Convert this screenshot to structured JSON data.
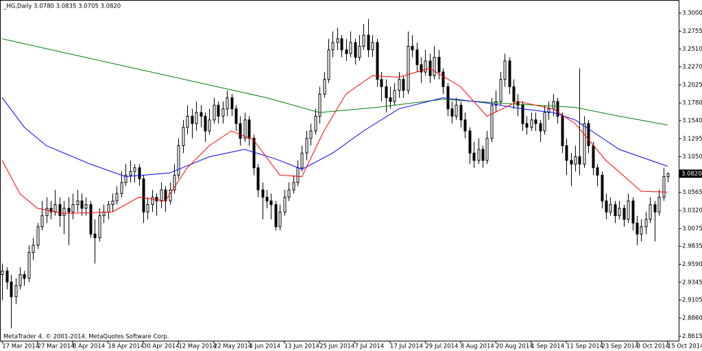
{
  "chart_data": {
    "type": "candlestick",
    "title": "_HG,Daily 3.0780 3.0835 3.0705 3.0820",
    "footer": "MetaTrader 4. © 2001-2014. MetaQuotes Software Corp.",
    "up_color": "#ffffff",
    "down_color": "#000000",
    "candles": [
      [
        2.945,
        2.96,
        2.91,
        2.95
      ],
      [
        2.95,
        2.955,
        2.925,
        2.935
      ],
      [
        2.935,
        2.945,
        2.872,
        2.915
      ],
      [
        2.915,
        2.94,
        2.905,
        2.93
      ],
      [
        2.93,
        2.955,
        2.925,
        2.945
      ],
      [
        2.945,
        2.95,
        2.93,
        2.94
      ],
      [
        2.94,
        2.985,
        2.935,
        2.975
      ],
      [
        2.975,
        2.995,
        2.965,
        2.985
      ],
      [
        2.985,
        3.015,
        2.98,
        3.01
      ],
      [
        3.01,
        3.045,
        3.005,
        3.025
      ],
      [
        3.025,
        3.05,
        3.015,
        3.035
      ],
      [
        3.035,
        3.045,
        3.02,
        3.03
      ],
      [
        3.03,
        3.06,
        3.025,
        3.04
      ],
      [
        3.04,
        3.05,
        3.01,
        3.025
      ],
      [
        3.025,
        3.045,
        3.0,
        3.035
      ],
      [
        3.035,
        3.05,
        2.985,
        3.03
      ],
      [
        3.03,
        3.055,
        3.02,
        3.04
      ],
      [
        3.04,
        3.06,
        3.03,
        3.045
      ],
      [
        3.045,
        3.055,
        3.025,
        3.035
      ],
      [
        3.035,
        3.05,
        3.025,
        3.04
      ],
      [
        3.04,
        3.045,
        2.995,
        3.0
      ],
      [
        3.0,
        3.02,
        2.96,
        2.995
      ],
      [
        2.995,
        3.035,
        2.99,
        3.025
      ],
      [
        3.025,
        3.04,
        3.015,
        3.03
      ],
      [
        3.03,
        3.045,
        3.02,
        3.04
      ],
      [
        3.04,
        3.055,
        3.03,
        3.045
      ],
      [
        3.045,
        3.065,
        3.04,
        3.055
      ],
      [
        3.055,
        3.085,
        3.05,
        3.07
      ],
      [
        3.07,
        3.095,
        3.065,
        3.08
      ],
      [
        3.08,
        3.1,
        3.07,
        3.085
      ],
      [
        3.085,
        3.095,
        3.07,
        3.09
      ],
      [
        3.09,
        3.095,
        3.065,
        3.075
      ],
      [
        3.075,
        3.08,
        3.015,
        3.03
      ],
      [
        3.03,
        3.05,
        3.02,
        3.04
      ],
      [
        3.04,
        3.06,
        3.03,
        3.05
      ],
      [
        3.05,
        3.055,
        3.025,
        3.045
      ],
      [
        3.045,
        3.07,
        3.035,
        3.06
      ],
      [
        3.06,
        3.065,
        3.03,
        3.045
      ],
      [
        3.045,
        3.07,
        3.04,
        3.06
      ],
      [
        3.06,
        3.095,
        3.055,
        3.08
      ],
      [
        3.08,
        3.13,
        3.075,
        3.12
      ],
      [
        3.12,
        3.155,
        3.11,
        3.145
      ],
      [
        3.145,
        3.175,
        3.135,
        3.16
      ],
      [
        3.16,
        3.17,
        3.13,
        3.15
      ],
      [
        3.15,
        3.18,
        3.14,
        3.165
      ],
      [
        3.165,
        3.175,
        3.145,
        3.16
      ],
      [
        3.16,
        3.165,
        3.125,
        3.14
      ],
      [
        3.14,
        3.17,
        3.135,
        3.155
      ],
      [
        3.155,
        3.185,
        3.15,
        3.175
      ],
      [
        3.175,
        3.18,
        3.15,
        3.16
      ],
      [
        3.16,
        3.18,
        3.15,
        3.17
      ],
      [
        3.17,
        3.195,
        3.16,
        3.185
      ],
      [
        3.185,
        3.19,
        3.16,
        3.17
      ],
      [
        3.17,
        3.175,
        3.14,
        3.15
      ],
      [
        3.15,
        3.16,
        3.12,
        3.13
      ],
      [
        3.13,
        3.165,
        3.125,
        3.155
      ],
      [
        3.155,
        3.16,
        3.12,
        3.13
      ],
      [
        3.13,
        3.135,
        3.08,
        3.09
      ],
      [
        3.09,
        3.095,
        3.05,
        3.06
      ],
      [
        3.06,
        3.07,
        3.02,
        3.05
      ],
      [
        3.05,
        3.06,
        3.035,
        3.045
      ],
      [
        3.045,
        3.055,
        3.02,
        3.04
      ],
      [
        3.04,
        3.045,
        3.005,
        3.01
      ],
      [
        3.01,
        3.04,
        3.005,
        3.03
      ],
      [
        3.03,
        3.06,
        3.025,
        3.05
      ],
      [
        3.05,
        3.07,
        3.045,
        3.06
      ],
      [
        3.06,
        3.08,
        3.055,
        3.07
      ],
      [
        3.07,
        3.1,
        3.065,
        3.09
      ],
      [
        3.09,
        3.12,
        3.085,
        3.11
      ],
      [
        3.11,
        3.14,
        3.1,
        3.13
      ],
      [
        3.13,
        3.15,
        3.12,
        3.14
      ],
      [
        3.14,
        3.17,
        3.135,
        3.16
      ],
      [
        3.16,
        3.2,
        3.15,
        3.19
      ],
      [
        3.19,
        3.22,
        3.185,
        3.21
      ],
      [
        3.21,
        3.265,
        3.205,
        3.25
      ],
      [
        3.25,
        3.275,
        3.24,
        3.26
      ],
      [
        3.26,
        3.28,
        3.25,
        3.265
      ],
      [
        3.265,
        3.27,
        3.24,
        3.25
      ],
      [
        3.25,
        3.265,
        3.235,
        3.245
      ],
      [
        3.245,
        3.275,
        3.24,
        3.26
      ],
      [
        3.26,
        3.265,
        3.23,
        3.24
      ],
      [
        3.24,
        3.27,
        3.235,
        3.255
      ],
      [
        3.255,
        3.285,
        3.25,
        3.27
      ],
      [
        3.27,
        3.292,
        3.24,
        3.25
      ],
      [
        3.25,
        3.27,
        3.24,
        3.26
      ],
      [
        3.26,
        3.265,
        3.2,
        3.21
      ],
      [
        3.21,
        3.22,
        3.18,
        3.2
      ],
      [
        3.2,
        3.21,
        3.165,
        3.185
      ],
      [
        3.185,
        3.2,
        3.17,
        3.18
      ],
      [
        3.18,
        3.205,
        3.175,
        3.195
      ],
      [
        3.195,
        3.22,
        3.185,
        3.21
      ],
      [
        3.21,
        3.215,
        3.185,
        3.195
      ],
      [
        3.195,
        3.275,
        3.19,
        3.255
      ],
      [
        3.255,
        3.27,
        3.24,
        3.25
      ],
      [
        3.25,
        3.26,
        3.22,
        3.23
      ],
      [
        3.23,
        3.24,
        3.205,
        3.22
      ],
      [
        3.22,
        3.25,
        3.215,
        3.235
      ],
      [
        3.235,
        3.245,
        3.205,
        3.215
      ],
      [
        3.215,
        3.255,
        3.21,
        3.24
      ],
      [
        3.24,
        3.25,
        3.21,
        3.22
      ],
      [
        3.22,
        3.225,
        3.19,
        3.2
      ],
      [
        3.2,
        3.205,
        3.16,
        3.17
      ],
      [
        3.17,
        3.18,
        3.15,
        3.16
      ],
      [
        3.16,
        3.185,
        3.155,
        3.175
      ],
      [
        3.175,
        3.18,
        3.145,
        3.155
      ],
      [
        3.155,
        3.165,
        3.13,
        3.14
      ],
      [
        3.14,
        3.145,
        3.095,
        3.11
      ],
      [
        3.11,
        3.125,
        3.09,
        3.1
      ],
      [
        3.1,
        3.13,
        3.095,
        3.115
      ],
      [
        3.115,
        3.12,
        3.09,
        3.1
      ],
      [
        3.1,
        3.14,
        3.095,
        3.13
      ],
      [
        3.13,
        3.185,
        3.125,
        3.175
      ],
      [
        3.175,
        3.195,
        3.165,
        3.18
      ],
      [
        3.18,
        3.22,
        3.175,
        3.21
      ],
      [
        3.21,
        3.245,
        3.2,
        3.235
      ],
      [
        3.235,
        3.24,
        3.19,
        3.2
      ],
      [
        3.2,
        3.21,
        3.17,
        3.18
      ],
      [
        3.18,
        3.19,
        3.16,
        3.175
      ],
      [
        3.175,
        3.18,
        3.14,
        3.15
      ],
      [
        3.15,
        3.16,
        3.135,
        3.145
      ],
      [
        3.145,
        3.165,
        3.14,
        3.155
      ],
      [
        3.155,
        3.165,
        3.14,
        3.15
      ],
      [
        3.15,
        3.155,
        3.125,
        3.14
      ],
      [
        3.14,
        3.175,
        3.135,
        3.165
      ],
      [
        3.165,
        3.18,
        3.155,
        3.17
      ],
      [
        3.17,
        3.19,
        3.16,
        3.18
      ],
      [
        3.18,
        3.185,
        3.15,
        3.16
      ],
      [
        3.16,
        3.165,
        3.11,
        3.12
      ],
      [
        3.12,
        3.13,
        3.08,
        3.1
      ],
      [
        3.1,
        3.11,
        3.065,
        3.095
      ],
      [
        3.095,
        3.12,
        3.085,
        3.105
      ],
      [
        3.105,
        3.225,
        3.08,
        3.095
      ],
      [
        3.095,
        3.16,
        3.09,
        3.15
      ],
      [
        3.15,
        3.155,
        3.11,
        3.12
      ],
      [
        3.12,
        3.125,
        3.08,
        3.09
      ],
      [
        3.09,
        3.095,
        3.065,
        3.08
      ],
      [
        3.08,
        3.085,
        3.035,
        3.045
      ],
      [
        3.045,
        3.055,
        3.02,
        3.03
      ],
      [
        3.03,
        3.05,
        3.025,
        3.04
      ],
      [
        3.04,
        3.045,
        3.015,
        3.025
      ],
      [
        3.025,
        3.045,
        3.02,
        3.035
      ],
      [
        3.035,
        3.04,
        3.01,
        3.02
      ],
      [
        3.02,
        3.055,
        3.015,
        3.045
      ],
      [
        3.045,
        3.05,
        3.005,
        3.015
      ],
      [
        3.015,
        3.025,
        2.985,
        3.0
      ],
      [
        3.0,
        3.02,
        2.99,
        3.01
      ],
      [
        3.01,
        3.03,
        3.0,
        3.02
      ],
      [
        3.02,
        3.05,
        3.015,
        3.04
      ],
      [
        3.04,
        3.045,
        2.99,
        3.03
      ],
      [
        3.03,
        3.06,
        3.025,
        3.05
      ],
      [
        3.05,
        3.09,
        3.045,
        3.078
      ],
      [
        3.078,
        3.0835,
        3.0705,
        3.082
      ]
    ],
    "series": [
      {
        "color": "#008000",
        "x": [
          0,
          15,
          30,
          45,
          60,
          72,
          85,
          100,
          115,
          130,
          140,
          151
        ],
        "values": [
          3.265,
          3.245,
          3.225,
          3.205,
          3.185,
          3.165,
          3.172,
          3.183,
          3.177,
          3.172,
          3.16,
          3.148
        ]
      },
      {
        "color": "#0000ff",
        "x": [
          0,
          5,
          10,
          20,
          28,
          38,
          47,
          55,
          62,
          68,
          75,
          82,
          90,
          100,
          110,
          118,
          125,
          130,
          140,
          151
        ],
        "values": [
          3.185,
          3.145,
          3.12,
          3.095,
          3.078,
          3.083,
          3.105,
          3.115,
          3.102,
          3.088,
          3.11,
          3.14,
          3.17,
          3.185,
          3.178,
          3.17,
          3.165,
          3.155,
          3.115,
          3.092
        ]
      },
      {
        "color": "#ff0000",
        "x": [
          0,
          4,
          8,
          14,
          25,
          31,
          37,
          42,
          47,
          52,
          57,
          63,
          68,
          73,
          78,
          84,
          90,
          97,
          104,
          110,
          117,
          125,
          130,
          137,
          145,
          151
        ],
        "values": [
          3.1,
          3.055,
          3.035,
          3.028,
          3.03,
          3.05,
          3.045,
          3.09,
          3.12,
          3.14,
          3.128,
          3.08,
          3.078,
          3.14,
          3.19,
          3.215,
          3.213,
          3.225,
          3.2,
          3.16,
          3.18,
          3.17,
          3.15,
          3.1,
          3.058,
          3.057
        ]
      }
    ],
    "xlim": [
      -0.5,
      153.5
    ],
    "xticks": [
      {
        "value": 0,
        "label": "17 Mar 2014"
      },
      {
        "value": 8,
        "label": "27 Mar 2014"
      },
      {
        "value": 16,
        "label": "8 Apr 2014"
      },
      {
        "value": 24,
        "label": "18 Apr 2014"
      },
      {
        "value": 32,
        "label": "30 Apr 2014"
      },
      {
        "value": 40,
        "label": "12 May 2014"
      },
      {
        "value": 48,
        "label": "22 May 2014"
      },
      {
        "value": 56,
        "label": "3 Jun 2014"
      },
      {
        "value": 64,
        "label": "13 Jun 2014"
      },
      {
        "value": 72,
        "label": "25 Jun 2014"
      },
      {
        "value": 80,
        "label": "7 Jul 2014"
      },
      {
        "value": 88,
        "label": "17 Jul 2014"
      },
      {
        "value": 96,
        "label": "29 Jul 2014"
      },
      {
        "value": 104,
        "label": "8 Aug 2014"
      },
      {
        "value": 112,
        "label": "20 Aug 2014"
      },
      {
        "value": 120,
        "label": "1 Sep 2014"
      },
      {
        "value": 128,
        "label": "11 Sep 2014"
      },
      {
        "value": 136,
        "label": "23 Sep 2014"
      },
      {
        "value": 144,
        "label": "3 Oct 2014"
      },
      {
        "value": 151,
        "label": "15 Oct 2014"
      }
    ],
    "ylim": [
      2.8553,
      3.3177
    ],
    "yticks": [
      {
        "value": 3.3,
        "label": "3.3000"
      },
      {
        "value": 3.2755,
        "label": "3.2755"
      },
      {
        "value": 3.251,
        "label": "3.2510"
      },
      {
        "value": 3.227,
        "label": "3.2270"
      },
      {
        "value": 3.2025,
        "label": "3.2025"
      },
      {
        "value": 3.178,
        "label": "3.1780"
      },
      {
        "value": 3.154,
        "label": "3.1540"
      },
      {
        "value": 3.1295,
        "label": "3.1295"
      },
      {
        "value": 3.105,
        "label": "3.1050"
      },
      {
        "value": 3.0565,
        "label": "3.0565"
      },
      {
        "value": 3.032,
        "label": "3.0320"
      },
      {
        "value": 3.0075,
        "label": "3.0075"
      },
      {
        "value": 2.9835,
        "label": "2.9835"
      },
      {
        "value": 2.959,
        "label": "2.9590"
      },
      {
        "value": 2.9345,
        "label": "2.9345"
      },
      {
        "value": 2.9105,
        "label": "2.9105"
      },
      {
        "value": 2.886,
        "label": "2.8860"
      },
      {
        "value": 2.8615,
        "label": "2.8615"
      }
    ],
    "last_price": {
      "value": 3.082,
      "label": "3.0820"
    }
  }
}
